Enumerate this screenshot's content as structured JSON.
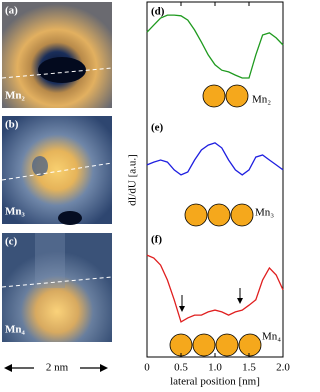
{
  "chart_data": {
    "type": "line",
    "xlabel": "lateral position [nm]",
    "ylabel": "dI/dU [a.u.]",
    "xlim": [
      0,
      2
    ],
    "xticks": [
      0,
      0.5,
      {
        "value": 1,
        "label": "1.0"
      },
      1.5,
      {
        "value": 2,
        "label": "2.0"
      }
    ],
    "ylim": [
      0,
      10
    ],
    "x": [
      0,
      0.1,
      0.2,
      0.3,
      0.4,
      0.5,
      0.6,
      0.7,
      0.8,
      0.9,
      1.0,
      1.1,
      1.2,
      1.3,
      1.4,
      1.5,
      1.6,
      1.7,
      1.8,
      1.9,
      2.0
    ],
    "series": [
      {
        "name": "Mn₂",
        "panel": "(d)",
        "color": "#1f9a1f",
        "values": [
          9.15,
          9.35,
          9.55,
          9.63,
          9.63,
          9.61,
          9.49,
          9.21,
          8.87,
          8.51,
          8.23,
          8.08,
          8.03,
          7.94,
          7.86,
          7.86,
          8.51,
          9.07,
          9.13,
          8.99,
          8.79
        ]
      },
      {
        "name": "Mn₃",
        "panel": "(e)",
        "color": "#1f1fe0",
        "values": [
          5.41,
          5.49,
          5.55,
          5.49,
          5.27,
          5.13,
          5.21,
          5.55,
          5.83,
          5.97,
          6.03,
          5.89,
          5.55,
          5.27,
          5.13,
          5.27,
          5.63,
          5.69,
          5.55,
          5.41,
          5.27
        ]
      },
      {
        "name": "Mn₄",
        "panel": "(f)",
        "color": "#e01f1f",
        "values": [
          2.87,
          2.79,
          2.59,
          2.17,
          1.61,
          0.99,
          1.1,
          1.18,
          1.18,
          1.27,
          1.32,
          1.27,
          1.18,
          1.27,
          1.32,
          1.46,
          1.61,
          2.17,
          2.51,
          2.31,
          1.89
        ]
      }
    ],
    "images": [
      {
        "panel": "(a)",
        "label": "Mn₂"
      },
      {
        "panel": "(b)",
        "label": "Mn₃"
      },
      {
        "panel": "(c)",
        "label": "Mn₄"
      }
    ],
    "scale_bar": "2 nm"
  }
}
